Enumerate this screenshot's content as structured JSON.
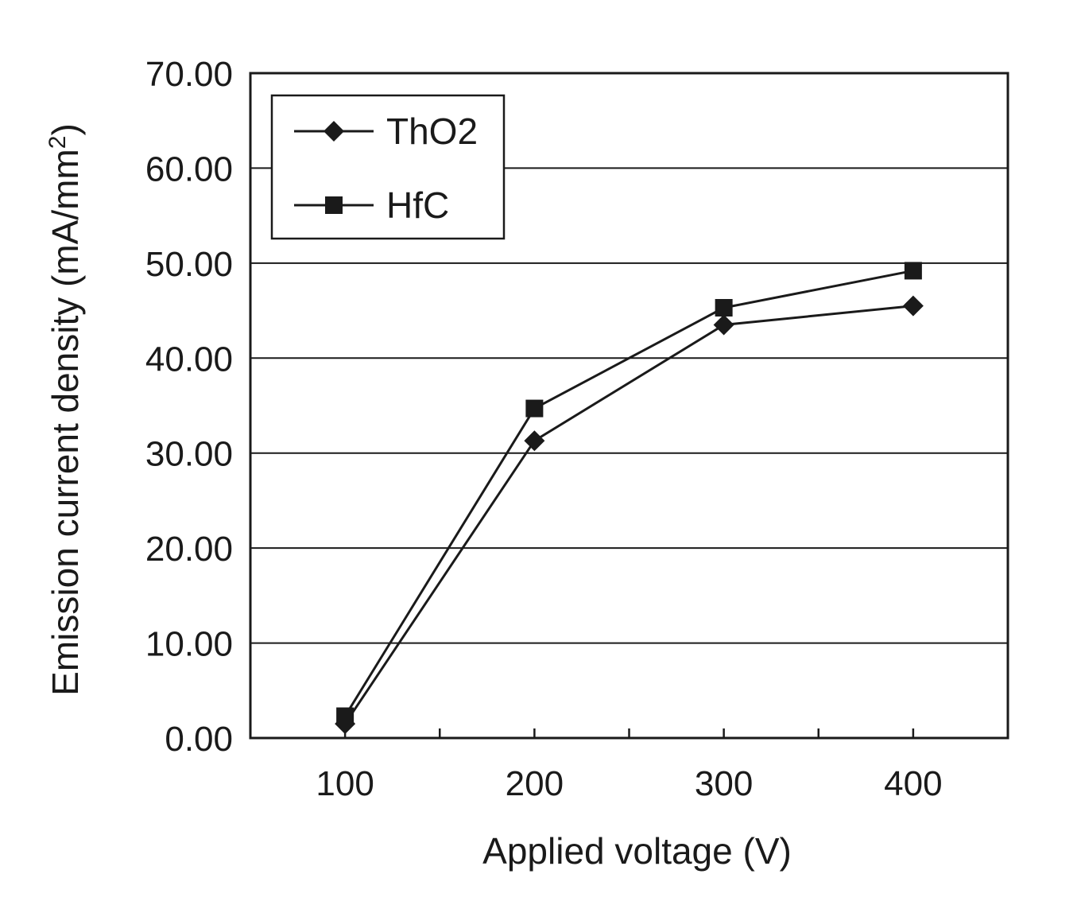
{
  "chart_data": {
    "type": "line",
    "xlabel": "Applied voltage (V)",
    "ylabel": "Emission current density (mA/mm",
    "ylabel_sup": "2",
    "ylabel_close": ")",
    "x": [
      100,
      200,
      300,
      400
    ],
    "x_ticks": [
      "100",
      "200",
      "300",
      "400"
    ],
    "xlim": [
      50,
      450
    ],
    "ylim": [
      0,
      70
    ],
    "y_ticks": [
      "0.00",
      "10.00",
      "20.00",
      "30.00",
      "40.00",
      "50.00",
      "60.00",
      "70.00"
    ],
    "grid": "horizontal",
    "legend_position": "top-left",
    "series": [
      {
        "name": "ThO2",
        "marker": "diamond",
        "color": "#1a1a1a",
        "values": [
          1.5,
          31.3,
          43.5,
          45.5
        ]
      },
      {
        "name": "HfC",
        "marker": "square",
        "color": "#1a1a1a",
        "values": [
          2.3,
          34.7,
          45.3,
          49.2
        ]
      }
    ]
  }
}
